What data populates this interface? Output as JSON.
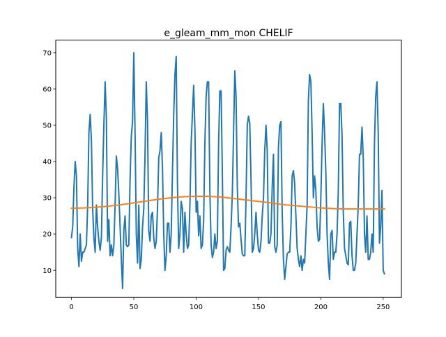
{
  "chart_data": {
    "type": "line",
    "title": "e_gleam_mm_mon CHELIF",
    "xlabel": "",
    "ylabel": "",
    "xlim": [
      -12.6,
      264.6
    ],
    "ylim": [
      2.5,
      73.5
    ],
    "xticks": [
      0,
      50,
      100,
      150,
      200,
      250
    ],
    "yticks": [
      10,
      20,
      30,
      40,
      50,
      60,
      70
    ],
    "grid": false,
    "series": [
      {
        "color": "#1f77b4",
        "x": [
          0,
          1,
          2,
          3,
          4,
          5,
          6,
          7,
          8,
          9,
          10,
          11,
          12,
          13,
          14,
          15,
          16,
          17,
          18,
          19,
          20,
          21,
          22,
          23,
          24,
          25,
          26,
          27,
          28,
          29,
          30,
          31,
          32,
          33,
          34,
          35,
          36,
          37,
          38,
          39,
          40,
          41,
          42,
          43,
          44,
          45,
          46,
          47,
          48,
          49,
          50,
          51,
          52,
          53,
          54,
          55,
          56,
          57,
          58,
          59,
          60,
          61,
          62,
          63,
          64,
          65,
          66,
          67,
          68,
          69,
          70,
          71,
          72,
          73,
          74,
          75,
          76,
          77,
          78,
          79,
          80,
          81,
          82,
          83,
          84,
          85,
          86,
          87,
          88,
          89,
          90,
          91,
          92,
          93,
          94,
          95,
          96,
          97,
          98,
          99,
          100,
          101,
          102,
          103,
          104,
          105,
          106,
          107,
          108,
          109,
          110,
          111,
          112,
          113,
          114,
          115,
          116,
          117,
          118,
          119,
          120,
          121,
          122,
          123,
          124,
          125,
          126,
          127,
          128,
          129,
          130,
          131,
          132,
          133,
          134,
          135,
          136,
          137,
          138,
          139,
          140,
          141,
          142,
          143,
          144,
          145,
          146,
          147,
          148,
          149,
          150,
          151,
          152,
          153,
          154,
          155,
          156,
          157,
          158,
          159,
          160,
          161,
          162,
          163,
          164,
          165,
          166,
          167,
          168,
          169,
          170,
          171,
          172,
          173,
          174,
          175,
          176,
          177,
          178,
          179,
          180,
          181,
          182,
          183,
          184,
          185,
          186,
          187,
          188,
          189,
          190,
          191,
          192,
          193,
          194,
          195,
          196,
          197,
          198,
          199,
          200,
          201,
          202,
          203,
          204,
          205,
          206,
          207,
          208,
          209,
          210,
          211,
          212,
          213,
          214,
          215,
          216,
          217,
          218,
          219,
          220,
          221,
          222,
          223,
          224,
          225,
          226,
          227,
          228,
          229,
          230,
          231,
          232,
          233,
          234,
          235,
          236,
          237,
          238,
          239,
          240,
          241,
          242,
          243,
          244,
          245,
          246,
          247,
          248,
          249,
          250,
          251
        ],
        "y": [
          19,
          22,
          33,
          40,
          36,
          16,
          11,
          20,
          12.5,
          15,
          15,
          16,
          17,
          28,
          48,
          53,
          46,
          27,
          19,
          15,
          28,
          22,
          18,
          15.5,
          19,
          36,
          50,
          62,
          52,
          18,
          24,
          14,
          17,
          14,
          17,
          28,
          41.5,
          38,
          31,
          22,
          13,
          5,
          21,
          25,
          17,
          16.5,
          17,
          35,
          47,
          51,
          70,
          48,
          20,
          12,
          28,
          10.5,
          13,
          22,
          27,
          42,
          62,
          51,
          21,
          18,
          25,
          26,
          19,
          16,
          18,
          27,
          41,
          43,
          48,
          38,
          20,
          10,
          14,
          23,
          23,
          15,
          20,
          37,
          53,
          64,
          69,
          34,
          16,
          20,
          29,
          27,
          15,
          26,
          20,
          16,
          17,
          28,
          45,
          53,
          61,
          49,
          26,
          29,
          19.5,
          25,
          16,
          17,
          23.5,
          45,
          58,
          62,
          62,
          32,
          17,
          13.5,
          15,
          20,
          16,
          18,
          45,
          59.5,
          59.5,
          37,
          10,
          10.5,
          15.5,
          16.5,
          15.5,
          15,
          22,
          31,
          48,
          65,
          58,
          33,
          22,
          23,
          18.5,
          14.5,
          14,
          14,
          30,
          50,
          52.5,
          50.5,
          35,
          15,
          16,
          20,
          26,
          20,
          15.5,
          15,
          18,
          25,
          30,
          43,
          50,
          43,
          17.5,
          17.5,
          20,
          33,
          42,
          16.5,
          15,
          17,
          44,
          50,
          51,
          26,
          13,
          7.5,
          11,
          14.5,
          15,
          15,
          22,
          36,
          37.5,
          34,
          25,
          16,
          13,
          11,
          14,
          10,
          13,
          12,
          20,
          28,
          57,
          64,
          62,
          48,
          30,
          36,
          32,
          22,
          18,
          18.5,
          30,
          45,
          56,
          48,
          37,
          20,
          12,
          7.5,
          20,
          21,
          13,
          15,
          15,
          20,
          32,
          56,
          56,
          47,
          26,
          16,
          14,
          12,
          11.5,
          23,
          23.5,
          14,
          10,
          10,
          12,
          20,
          28,
          42,
          42,
          49.5,
          41,
          20,
          15,
          25,
          13,
          13,
          15,
          20,
          15,
          45,
          58,
          62,
          48,
          17.5,
          22,
          32,
          10,
          9
        ]
      },
      {
        "color": "#ff7f0e",
        "x": [
          0,
          10,
          20,
          30,
          40,
          50,
          60,
          70,
          80,
          90,
          100,
          110,
          120,
          130,
          140,
          150,
          160,
          170,
          180,
          190,
          200,
          210,
          220,
          230,
          240,
          251
        ],
        "y": [
          27.1,
          27.2,
          27.4,
          27.7,
          28.1,
          28.6,
          29.1,
          29.6,
          30.0,
          30.3,
          30.4,
          30.4,
          30.2,
          29.8,
          29.4,
          29.0,
          28.6,
          28.1,
          27.8,
          27.5,
          27.2,
          27.0,
          26.9,
          26.9,
          26.9,
          26.9
        ]
      }
    ]
  }
}
